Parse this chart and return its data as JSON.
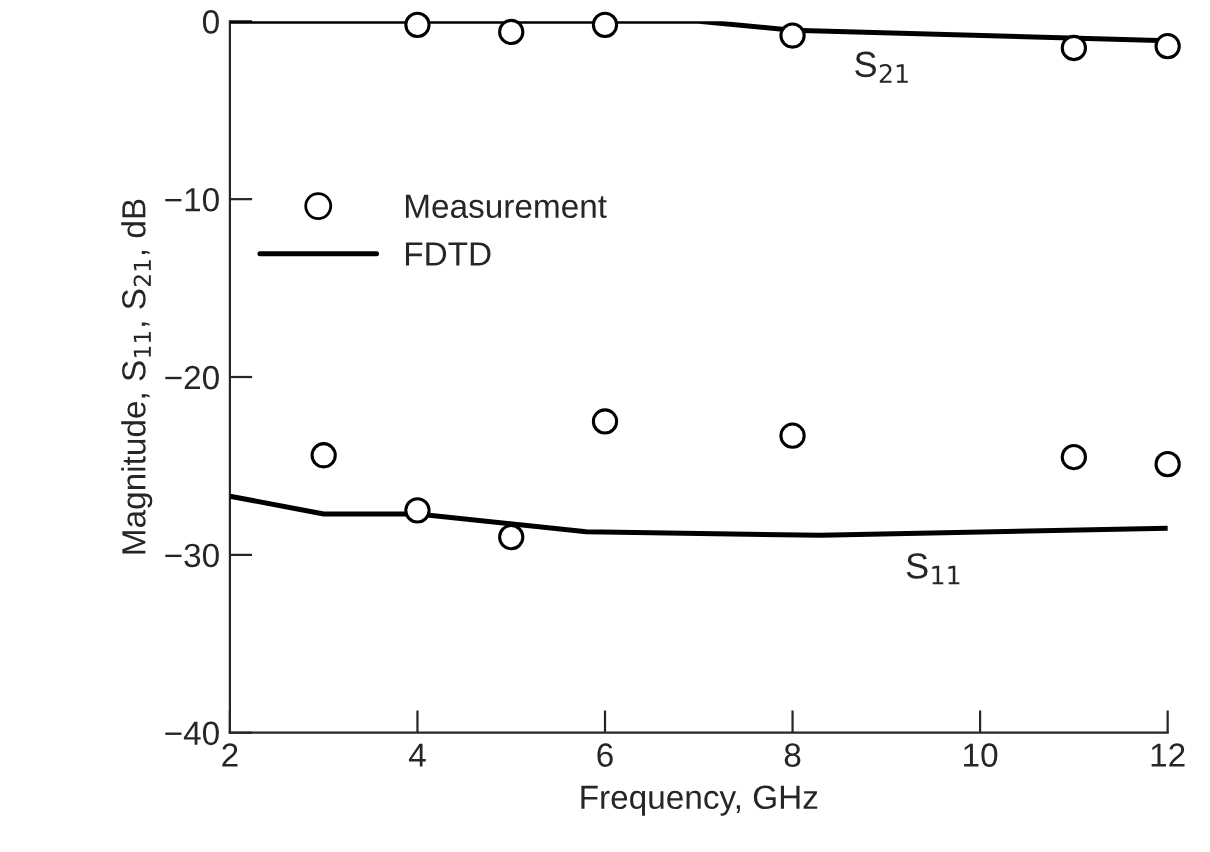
{
  "chart_data": {
    "type": "line",
    "xlabel": "Frequency, GHz",
    "ylabel": "Magnitude, S$_{11}$, S$_{21}$, dB",
    "xlim": [
      2,
      12
    ],
    "xticks": [
      2,
      4,
      6,
      8,
      10,
      12
    ],
    "ylim": [
      -40,
      0
    ],
    "yticks": [
      -40,
      -30,
      -20,
      -10,
      0
    ],
    "grid": false,
    "legend": "upper left",
    "series": [
      {
        "name": "Measurement",
        "type": "scatter",
        "marker": "circle",
        "color": "#000000",
        "x": [
          4,
          5,
          6,
          8,
          11,
          12
        ],
        "values": [
          -0.2,
          -0.6,
          -0.2,
          -0.8,
          -1.5,
          -1.4
        ]
      },
      {
        "type": "scatter",
        "marker": "circle",
        "color": "#000000",
        "x": [
          3,
          4,
          5,
          6,
          8,
          11,
          12
        ],
        "values": [
          -24.4,
          -27.5,
          -29.0,
          -22.5,
          -23.3,
          -24.5,
          -24.9
        ]
      },
      {
        "name": "FDTD",
        "line_style": "solid",
        "color": "#000000",
        "x": [
          2,
          7,
          8,
          12
        ],
        "values": [
          0,
          0,
          -0.5,
          -1.1
        ]
      },
      {
        "line_style": "solid",
        "color": "#000000",
        "x": [
          2,
          3,
          4,
          5.8,
          8.3,
          12
        ],
        "values": [
          -26.7,
          -27.7,
          -27.7,
          -28.7,
          -28.9,
          -28.5
        ]
      }
    ],
    "annotations": [
      "S$_{21}$",
      "S$_{11}$"
    ]
  }
}
